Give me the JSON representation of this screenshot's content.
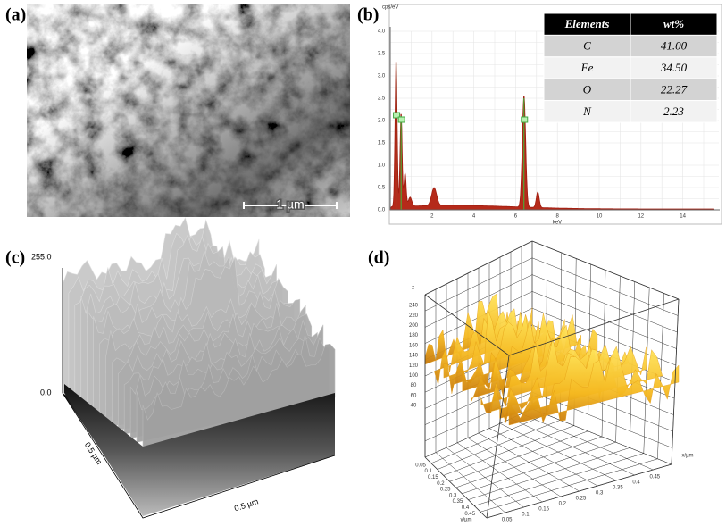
{
  "panels": [
    {
      "label": "(a)",
      "scale_bar": "1 µm"
    },
    {
      "label": "(b)",
      "y_axis_title": "cps/eV",
      "y_ticks": [
        "0.0",
        "0.5",
        "1.0",
        "1.5",
        "2.0",
        "2.5",
        "3.0",
        "3.5",
        "4.0"
      ],
      "x_axis_title": "keV",
      "x_ticks": [
        "2",
        "4",
        "6",
        "8",
        "10",
        "12",
        "14"
      ],
      "table": {
        "header": [
          "Elements",
          "wt%"
        ],
        "rows": [
          [
            "C",
            "41.00"
          ],
          [
            "Fe",
            "34.50"
          ],
          [
            "O",
            "22.27"
          ],
          [
            "N",
            "2.23"
          ]
        ]
      }
    },
    {
      "label": "(c)",
      "z_max": "255.0",
      "z_min": "0.0",
      "x_axis_title": "0.5 µm",
      "y_axis_title": "0.5 µm"
    },
    {
      "label": "(d)",
      "z_axis_title": "z",
      "z_ticks": [
        "240",
        "220",
        "200",
        "180",
        "160",
        "140",
        "120",
        "100",
        "80",
        "60",
        "40"
      ],
      "y_ticks": [
        "0.05",
        "0.1",
        "0.15",
        "0.2",
        "0.25",
        "0.3",
        "0.35",
        "0.4",
        "0.45"
      ],
      "y_axis_title": "y/µm",
      "x_ticks": [
        "0.05",
        "0.1",
        "0.15",
        "0.2",
        "0.25",
        "0.3",
        "0.35",
        "0.4",
        "0.45"
      ],
      "x_axis_title": "x/µm"
    }
  ]
}
